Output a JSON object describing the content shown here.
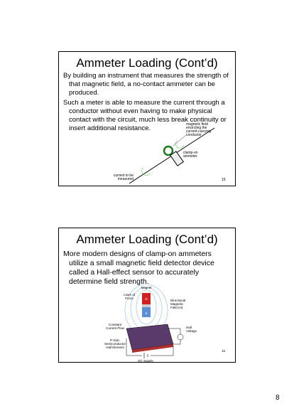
{
  "slides": [
    {
      "title": "Ammeter Loading (Cont’d)",
      "bullets": [
        "By building an instrument that measures the strength of that magnetic field, a no-contact ammeter can be produced.",
        "Such a meter is able to measure the current through a conductor without even having to make physical contact with the circuit, much less break continuity or insert additional resistance."
      ],
      "labels": {
        "field": [
          "magnetic field",
          "encircling the",
          "current-carrying",
          "conductor"
        ],
        "ammeter": [
          "clamp-on",
          "ammeter"
        ],
        "current": [
          "current to be",
          "measured"
        ]
      },
      "number": "15"
    },
    {
      "title": "Ammeter Loading (Cont’d)",
      "bullets": [
        "More modern designs of clamp-on ammeters utilize a small magnetic field detector device called a Hall-effect sensor to accurately determine field strength."
      ],
      "labels": {
        "magnet": [
          "Magnet"
        ],
        "north": [
          "N"
        ],
        "south": [
          "S"
        ],
        "lines": [
          "Lines of",
          "Force"
        ],
        "field": [
          "Directional",
          "Magnetic",
          "Field (H)"
        ],
        "current": [
          "Constant",
          "Current Flow"
        ],
        "hall_voltage": [
          "Hall",
          "Voltage"
        ],
        "element": [
          "P-Sub.",
          "Semiconductor",
          "Hall Element"
        ],
        "supply": [
          "DC Supply"
        ]
      },
      "number": "16"
    }
  ],
  "page_number": "8"
}
